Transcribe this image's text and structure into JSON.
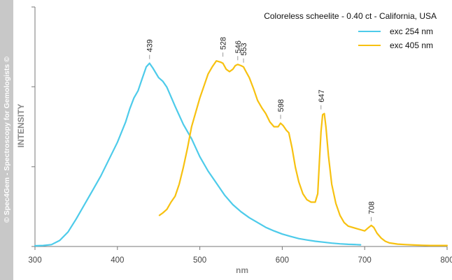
{
  "watermark": "© Spec4Gem - Spectroscopy for Gemologists ©",
  "chart_data": {
    "type": "line",
    "title": "Coloreless scheelite - 0.40 ct - California, USA",
    "xlabel": "nm",
    "ylabel": "INTENSITY",
    "xlim": [
      300,
      800
    ],
    "ylim": [
      0,
      100
    ],
    "x_ticks": [
      300,
      400,
      500,
      600,
      700,
      800
    ],
    "y_ticks": [
      0,
      33.3,
      66.7,
      100
    ],
    "y_tick_labels_shown": false,
    "grid": false,
    "legend_position": "top-right",
    "series": [
      {
        "name": "exc 254 nm",
        "color": "#4dcbea",
        "points": [
          [
            300,
            0.3
          ],
          [
            310,
            0.4
          ],
          [
            320,
            0.8
          ],
          [
            330,
            2.5
          ],
          [
            340,
            6
          ],
          [
            350,
            11.5
          ],
          [
            360,
            17.5
          ],
          [
            370,
            23.5
          ],
          [
            380,
            29.5
          ],
          [
            390,
            36.5
          ],
          [
            400,
            43.5
          ],
          [
            410,
            52
          ],
          [
            415,
            57.5
          ],
          [
            420,
            62
          ],
          [
            425,
            65
          ],
          [
            430,
            70
          ],
          [
            435,
            75
          ],
          [
            439,
            76.5
          ],
          [
            443,
            74.5
          ],
          [
            450,
            70.5
          ],
          [
            455,
            69
          ],
          [
            460,
            66.5
          ],
          [
            465,
            62.5
          ],
          [
            470,
            58.5
          ],
          [
            480,
            51
          ],
          [
            490,
            45
          ],
          [
            500,
            37.5
          ],
          [
            510,
            31.5
          ],
          [
            520,
            26.5
          ],
          [
            530,
            21.5
          ],
          [
            540,
            17.5
          ],
          [
            550,
            14.5
          ],
          [
            560,
            12
          ],
          [
            570,
            10
          ],
          [
            580,
            8
          ],
          [
            590,
            6.5
          ],
          [
            600,
            5.2
          ],
          [
            610,
            4.2
          ],
          [
            620,
            3.3
          ],
          [
            630,
            2.7
          ],
          [
            640,
            2.2
          ],
          [
            650,
            1.8
          ],
          [
            660,
            1.4
          ],
          [
            670,
            1.1
          ],
          [
            680,
            0.9
          ],
          [
            690,
            0.8
          ],
          [
            695,
            0.7
          ]
        ]
      },
      {
        "name": "exc 405 nm",
        "color": "#f7c110",
        "points": [
          [
            451,
            13
          ],
          [
            455,
            14
          ],
          [
            460,
            15.5
          ],
          [
            465,
            18.5
          ],
          [
            470,
            21
          ],
          [
            475,
            26
          ],
          [
            480,
            33
          ],
          [
            485,
            41
          ],
          [
            490,
            50
          ],
          [
            495,
            56
          ],
          [
            500,
            62
          ],
          [
            505,
            67
          ],
          [
            510,
            72
          ],
          [
            515,
            75
          ],
          [
            520,
            77.5
          ],
          [
            525,
            77
          ],
          [
            528,
            76.5
          ],
          [
            532,
            74
          ],
          [
            536,
            73
          ],
          [
            540,
            74
          ],
          [
            543,
            75.5
          ],
          [
            546,
            76
          ],
          [
            550,
            75.5
          ],
          [
            553,
            75
          ],
          [
            556,
            73
          ],
          [
            560,
            70.5
          ],
          [
            565,
            66
          ],
          [
            570,
            61
          ],
          [
            575,
            58
          ],
          [
            580,
            55.5
          ],
          [
            585,
            52
          ],
          [
            590,
            50
          ],
          [
            595,
            50
          ],
          [
            598,
            51.5
          ],
          [
            601,
            50.5
          ],
          [
            605,
            48.5
          ],
          [
            608,
            47.5
          ],
          [
            612,
            41
          ],
          [
            616,
            33
          ],
          [
            620,
            27
          ],
          [
            625,
            22
          ],
          [
            630,
            19.5
          ],
          [
            635,
            18.5
          ],
          [
            640,
            18.5
          ],
          [
            643,
            22
          ],
          [
            645,
            35
          ],
          [
            647,
            48
          ],
          [
            649,
            55
          ],
          [
            651,
            55.5
          ],
          [
            653,
            50
          ],
          [
            656,
            38
          ],
          [
            660,
            26
          ],
          [
            665,
            18
          ],
          [
            670,
            13
          ],
          [
            675,
            10
          ],
          [
            680,
            8.5
          ],
          [
            685,
            8
          ],
          [
            690,
            7.5
          ],
          [
            695,
            7
          ],
          [
            700,
            6.5
          ],
          [
            705,
            8
          ],
          [
            708,
            8.8
          ],
          [
            711,
            8
          ],
          [
            715,
            5.5
          ],
          [
            720,
            3.5
          ],
          [
            725,
            2.2
          ],
          [
            730,
            1.5
          ],
          [
            740,
            1
          ],
          [
            750,
            0.8
          ],
          [
            760,
            0.6
          ],
          [
            770,
            0.5
          ],
          [
            780,
            0.4
          ],
          [
            790,
            0.4
          ],
          [
            800,
            0.4
          ]
        ]
      }
    ],
    "peak_labels": [
      {
        "text": "439",
        "x": 439,
        "y": 76.5
      },
      {
        "text": "528",
        "x": 528,
        "y": 77.5
      },
      {
        "text": "546",
        "x": 546,
        "y": 76
      },
      {
        "text": "553",
        "x": 553,
        "y": 75
      },
      {
        "text": "598",
        "x": 598,
        "y": 51.5
      },
      {
        "text": "647",
        "x": 647,
        "y": 55.5
      },
      {
        "text": "708",
        "x": 708,
        "y": 8.8
      }
    ]
  }
}
